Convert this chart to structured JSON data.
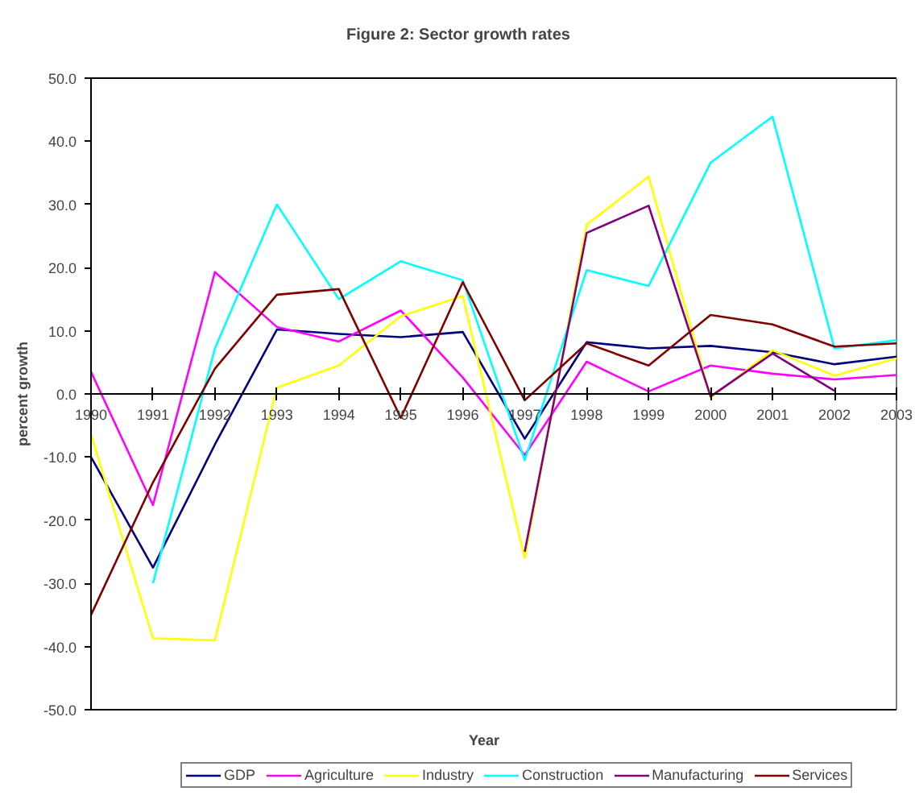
{
  "chart_data": {
    "type": "line",
    "title": "Figure 2: Sector growth rates",
    "xlabel": "Year",
    "ylabel": "percent growth",
    "x": [
      1990,
      1991,
      1992,
      1993,
      1994,
      1995,
      1996,
      1997,
      1998,
      1999,
      2000,
      2001,
      2002,
      2003
    ],
    "xlim": [
      1990,
      2003
    ],
    "xticks": [
      1990,
      1991,
      1992,
      1993,
      1994,
      1995,
      1996,
      1997,
      1998,
      1999,
      2000,
      2001,
      2002,
      2003
    ],
    "ylim": [
      -50,
      50
    ],
    "yticks": [
      {
        "value": -50,
        "label": "-50.0"
      },
      {
        "value": -40,
        "label": "-40.0"
      },
      {
        "value": -30,
        "label": "-30.0"
      },
      {
        "value": -20,
        "label": "-20.0"
      },
      {
        "value": -10,
        "label": "-10.0"
      },
      {
        "value": 0,
        "label": "0.0"
      },
      {
        "value": 10,
        "label": "10.0"
      },
      {
        "value": 20,
        "label": "20.0"
      },
      {
        "value": 30,
        "label": "30.0"
      },
      {
        "value": 40,
        "label": "40.0"
      },
      {
        "value": 50,
        "label": "50.0"
      }
    ],
    "grid": false,
    "legend": "bottom",
    "line_style": "solid",
    "series": [
      {
        "name": "GDP",
        "color": "#000080",
        "values": [
          -10,
          -27.5,
          -8,
          10.2,
          9.5,
          9,
          9.8,
          -7.1,
          8.2,
          7.2,
          7.6,
          6.6,
          4.7,
          5.9
        ]
      },
      {
        "name": "Agriculture",
        "color": "#ff00ff",
        "values": [
          3.5,
          -17.6,
          19.3,
          10.6,
          8.3,
          13.2,
          2.6,
          -9.7,
          5.1,
          0.4,
          4.5,
          3.2,
          2.3,
          3.0
        ]
      },
      {
        "name": "Industry",
        "color": "#ffff00",
        "values": [
          -6.4,
          -38.7,
          -39,
          1,
          4.5,
          12.3,
          15.5,
          -26,
          26.8,
          34.4,
          -0.6,
          6.9,
          2.9,
          5.6
        ]
      },
      {
        "name": "Construction",
        "color": "#00ffff",
        "values": [
          null,
          -30,
          7.2,
          30,
          15,
          21,
          18,
          -10.5,
          19.6,
          17.1,
          36.6,
          43.9,
          7.2,
          8.5
        ]
      },
      {
        "name": "Manufacturing",
        "color": "#800080",
        "values": [
          null,
          null,
          null,
          null,
          null,
          null,
          null,
          -25,
          25.5,
          29.8,
          -0.4,
          6.4,
          0.5,
          null
        ]
      },
      {
        "name": "Services",
        "color": "#800000",
        "values": [
          -35,
          -14,
          4,
          15.7,
          16.6,
          -3.8,
          17.7,
          -1,
          8,
          4.5,
          12.5,
          11,
          7.5,
          8
        ]
      }
    ]
  }
}
